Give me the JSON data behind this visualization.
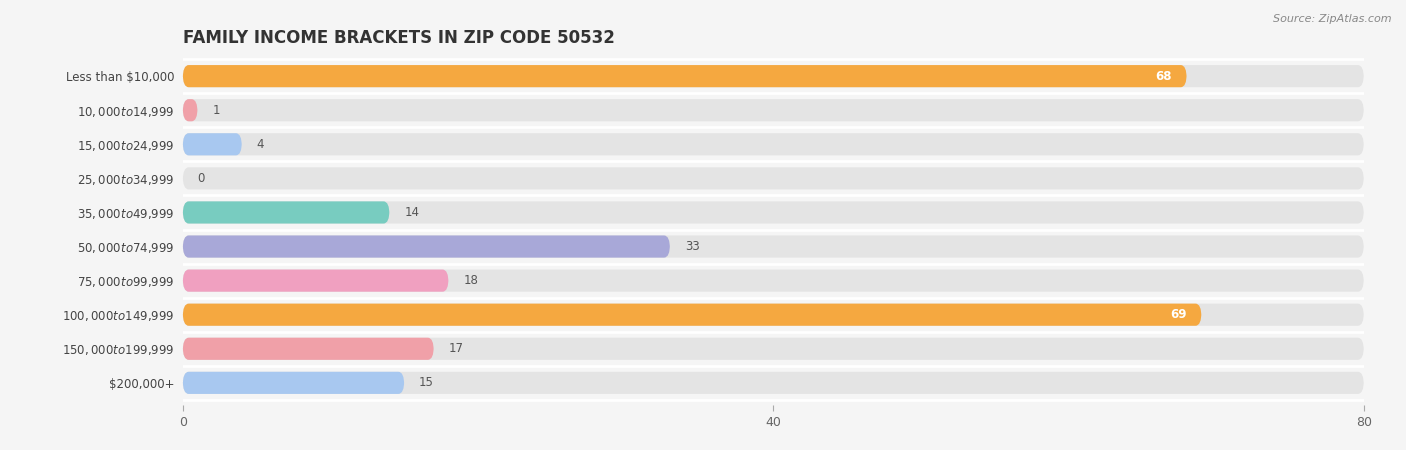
{
  "title": "FAMILY INCOME BRACKETS IN ZIP CODE 50532",
  "source": "Source: ZipAtlas.com",
  "categories": [
    "Less than $10,000",
    "$10,000 to $14,999",
    "$15,000 to $24,999",
    "$25,000 to $34,999",
    "$35,000 to $49,999",
    "$50,000 to $74,999",
    "$75,000 to $99,999",
    "$100,000 to $149,999",
    "$150,000 to $199,999",
    "$200,000+"
  ],
  "values": [
    68,
    1,
    4,
    0,
    14,
    33,
    18,
    69,
    17,
    15
  ],
  "bar_colors": [
    "#f5a840",
    "#f0a0a8",
    "#a8c8f0",
    "#c8a8d8",
    "#78ccc0",
    "#a8a8d8",
    "#f0a0c0",
    "#f5a840",
    "#f0a0a8",
    "#a8c8f0"
  ],
  "xlim": [
    0,
    80
  ],
  "xticks": [
    0,
    40,
    80
  ],
  "background_color": "#f5f5f5",
  "bar_bg_color": "#e4e4e4",
  "title_fontsize": 12,
  "label_fontsize": 8.5,
  "value_fontsize": 8.5
}
